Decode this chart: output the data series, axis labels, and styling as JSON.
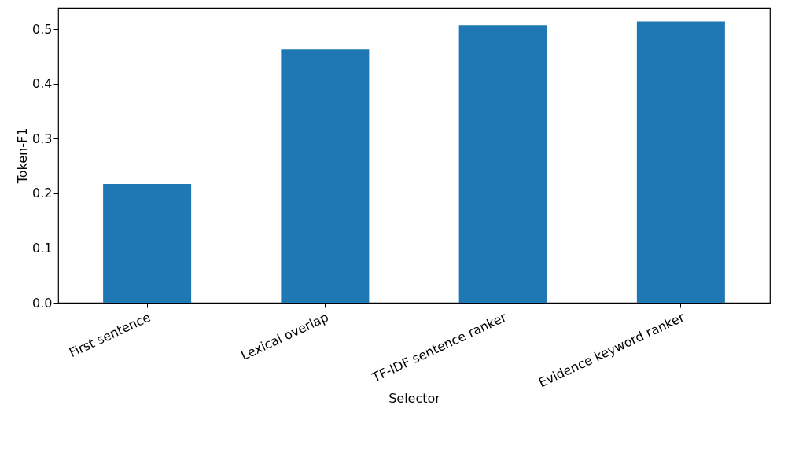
{
  "chart_data": {
    "type": "bar",
    "xlabel": "Selector",
    "ylabel": "Token-F1",
    "categories": [
      "First sentence",
      "Lexical overlap",
      "TF-IDF sentence ranker",
      "Evidence keyword ranker"
    ],
    "values": [
      0.217,
      0.464,
      0.507,
      0.514
    ],
    "color": "#1f77b4",
    "ylim": [
      0,
      0.539
    ],
    "yticks": [
      {
        "value": 0,
        "label": "0.0"
      },
      0.1,
      0.2,
      0.3,
      0.4,
      0.5
    ],
    "grid": false
  }
}
